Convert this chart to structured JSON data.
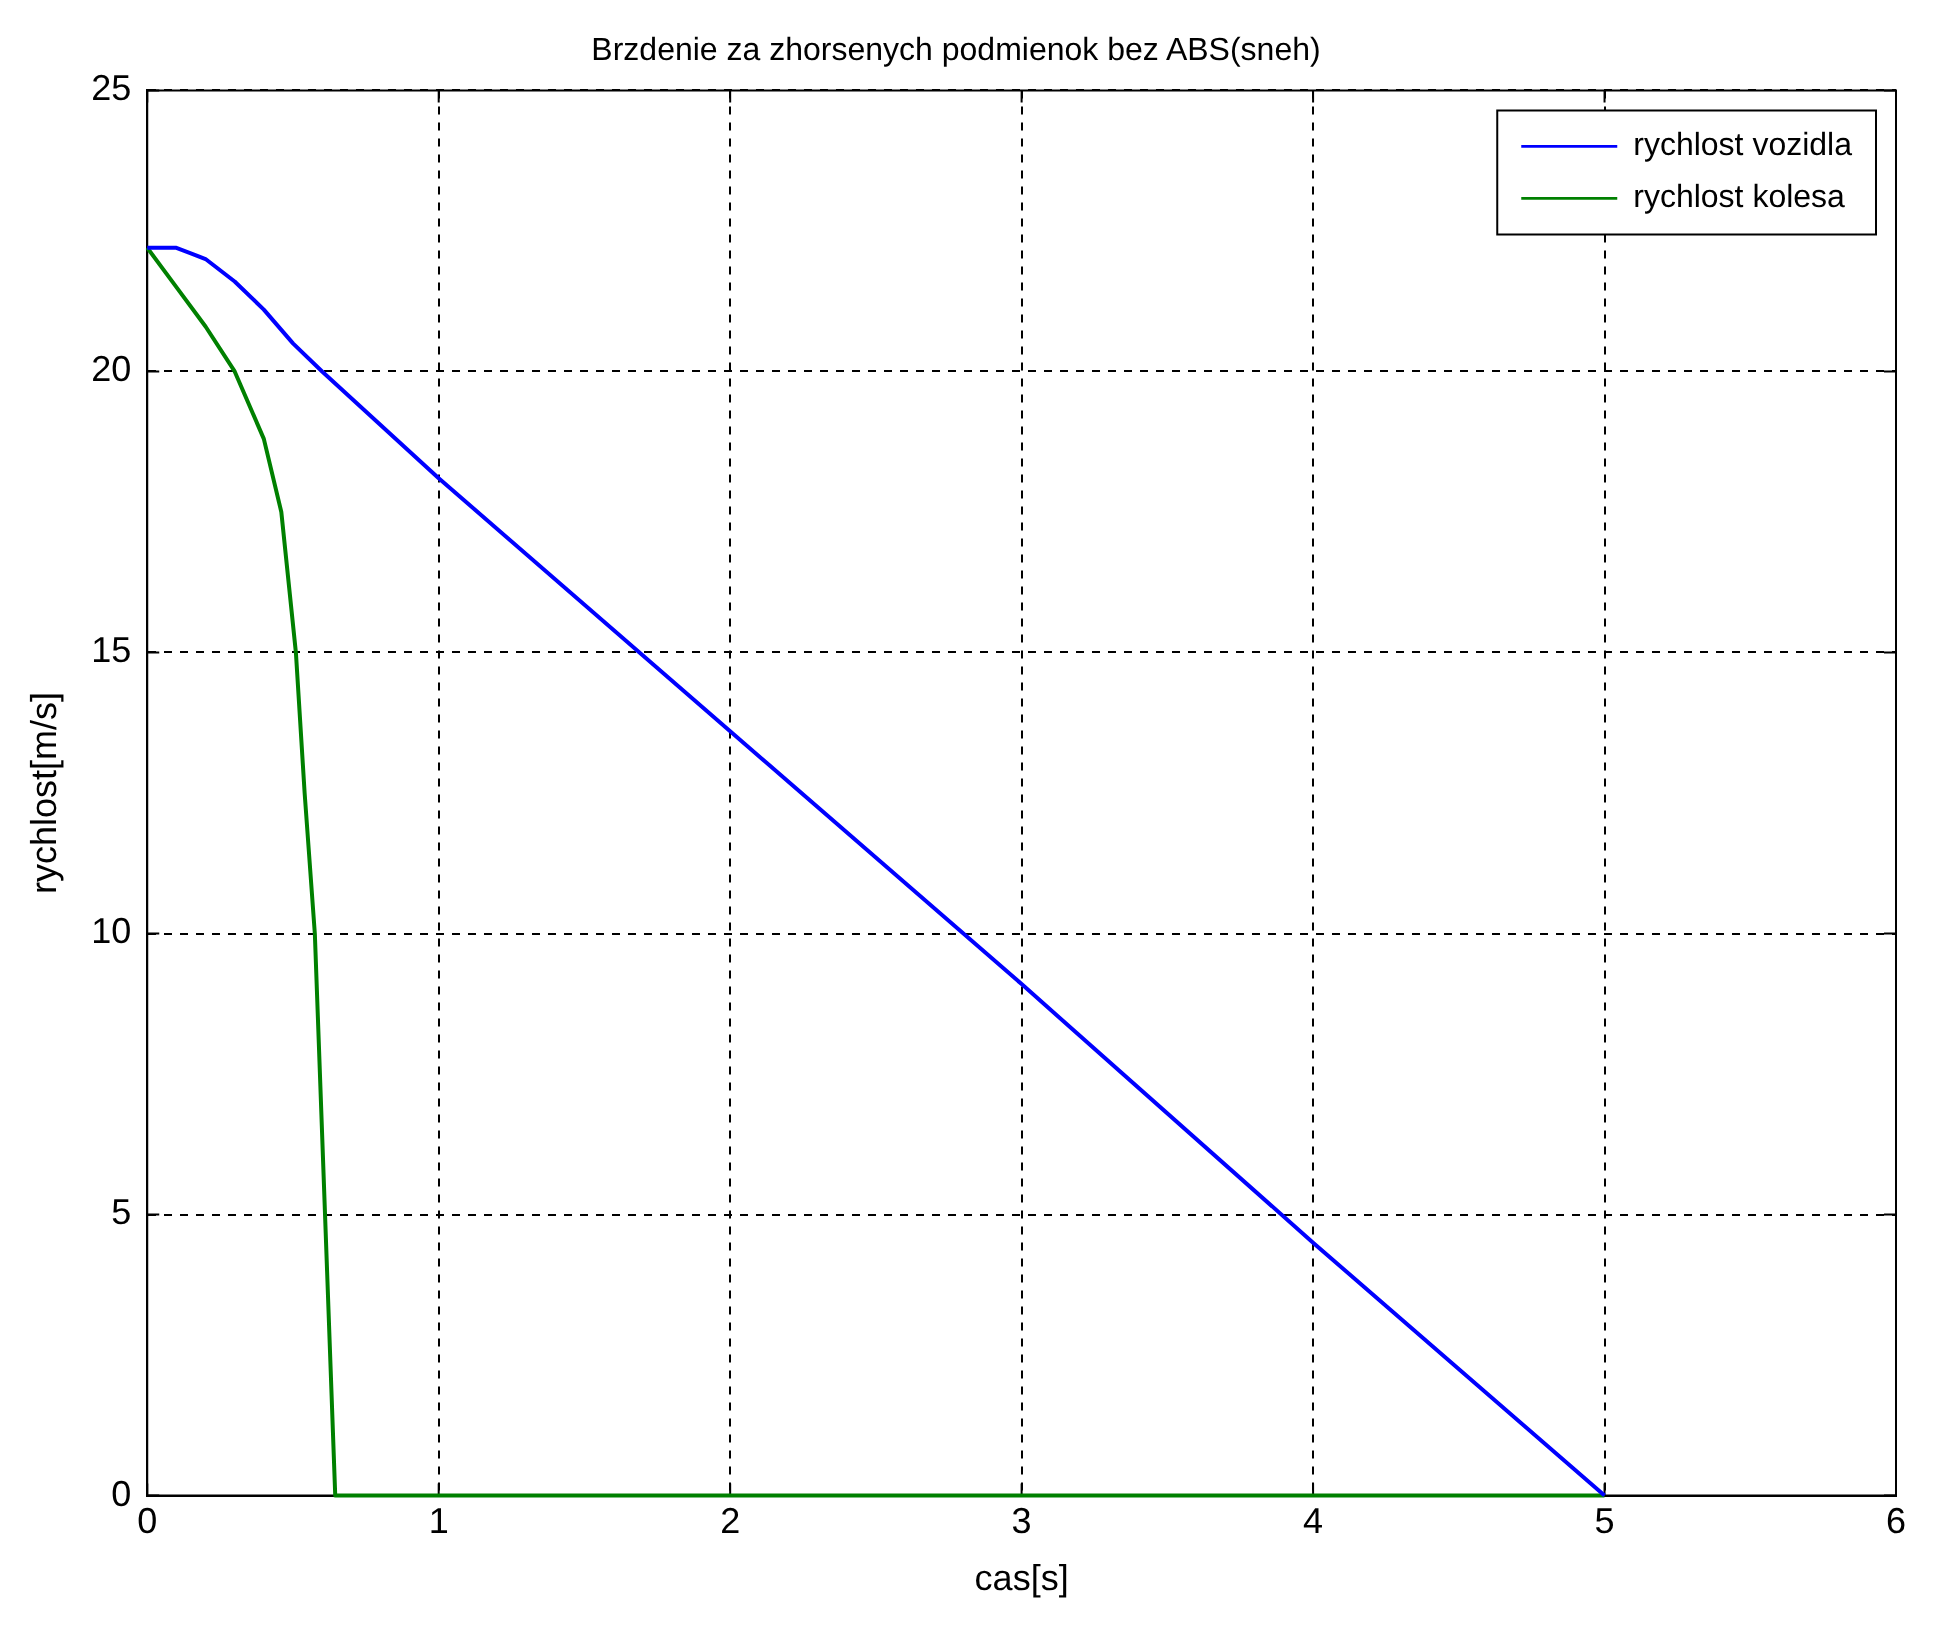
{
  "chart_data": {
    "type": "line",
    "title": "Brzdenie za zhorsenych podmienok bez ABS(sneh)",
    "xlabel": "cas[s]",
    "ylabel": "rychlost[m/s]",
    "xlim": [
      0,
      6
    ],
    "xticks": [
      0,
      1,
      2,
      3,
      4,
      5,
      6
    ],
    "ylim": [
      0,
      25
    ],
    "yticks": [
      0,
      5,
      10,
      15,
      20,
      25
    ],
    "grid": true,
    "legend": "top right",
    "line_style": "solid",
    "marker": "none",
    "series": [
      {
        "name": "rychlost vozidla",
        "color": "#0000ff",
        "x": [
          0,
          0.1,
          0.2,
          0.3,
          0.4,
          0.5,
          0.6,
          1,
          2,
          3,
          4,
          5
        ],
        "values": [
          22.2,
          22.2,
          22,
          21.6,
          21.1,
          20.5,
          20,
          18.1,
          13.6,
          9.1,
          4.5,
          0
        ]
      },
      {
        "name": "rychlost kolesa",
        "color": "#008000",
        "x": [
          0,
          0.1,
          0.2,
          0.3,
          0.4,
          0.46,
          0.51,
          0.54,
          0.575,
          0.61,
          0.645,
          1,
          2,
          3,
          4,
          5
        ],
        "values": [
          22.2,
          21.5,
          20.8,
          20,
          18.8,
          17.5,
          15,
          12.5,
          10,
          5,
          0,
          0,
          0,
          0,
          0,
          0
        ]
      }
    ]
  }
}
